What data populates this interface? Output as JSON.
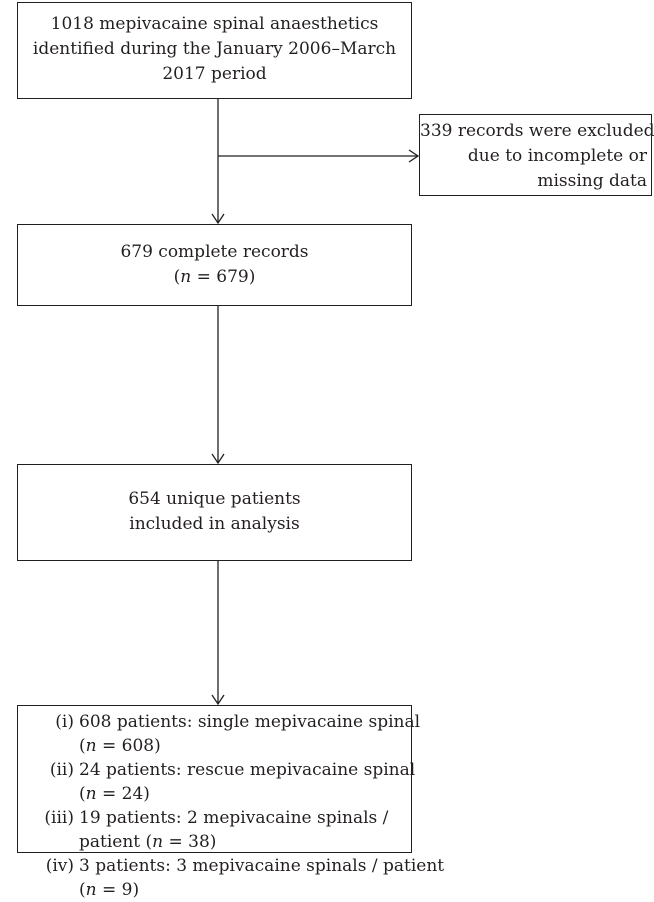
{
  "nodes": {
    "identified": {
      "lines": [
        "1018 mepivacaine spinal anaesthetics",
        "identified during the January 2006–March",
        "2017 period"
      ]
    },
    "excluded": {
      "lines": [
        "339 records were excluded",
        "due to incomplete or",
        "missing data"
      ]
    },
    "complete": {
      "line1": "679 complete records",
      "n_open": "(",
      "n_symbol": "n",
      "n_rest": " = 679)"
    },
    "unique": {
      "lines": [
        "654 unique patients",
        "included in analysis"
      ]
    },
    "breakdown": {
      "items": [
        {
          "num": "(i)",
          "text": "608 patients: single mepivacaine spinal",
          "cont_pre": "(",
          "cont_rest": " = 608)"
        },
        {
          "num": "(ii)",
          "text": "24 patients: rescue mepivacaine spinal",
          "cont_pre": "(",
          "cont_rest": " = 24)"
        },
        {
          "num": "(iii)",
          "text": "19 patients: 2 mepivacaine spinals /",
          "cont_pre": "patient (",
          "cont_rest": " = 38)"
        },
        {
          "num": "(iv)",
          "text": "3 patients: 3 mepivacaine spinals / patient",
          "cont_pre": "(",
          "cont_rest": " = 9)"
        }
      ],
      "n_symbol": "n"
    }
  },
  "colors": {
    "stroke": "#231f20",
    "text": "#231f20"
  }
}
